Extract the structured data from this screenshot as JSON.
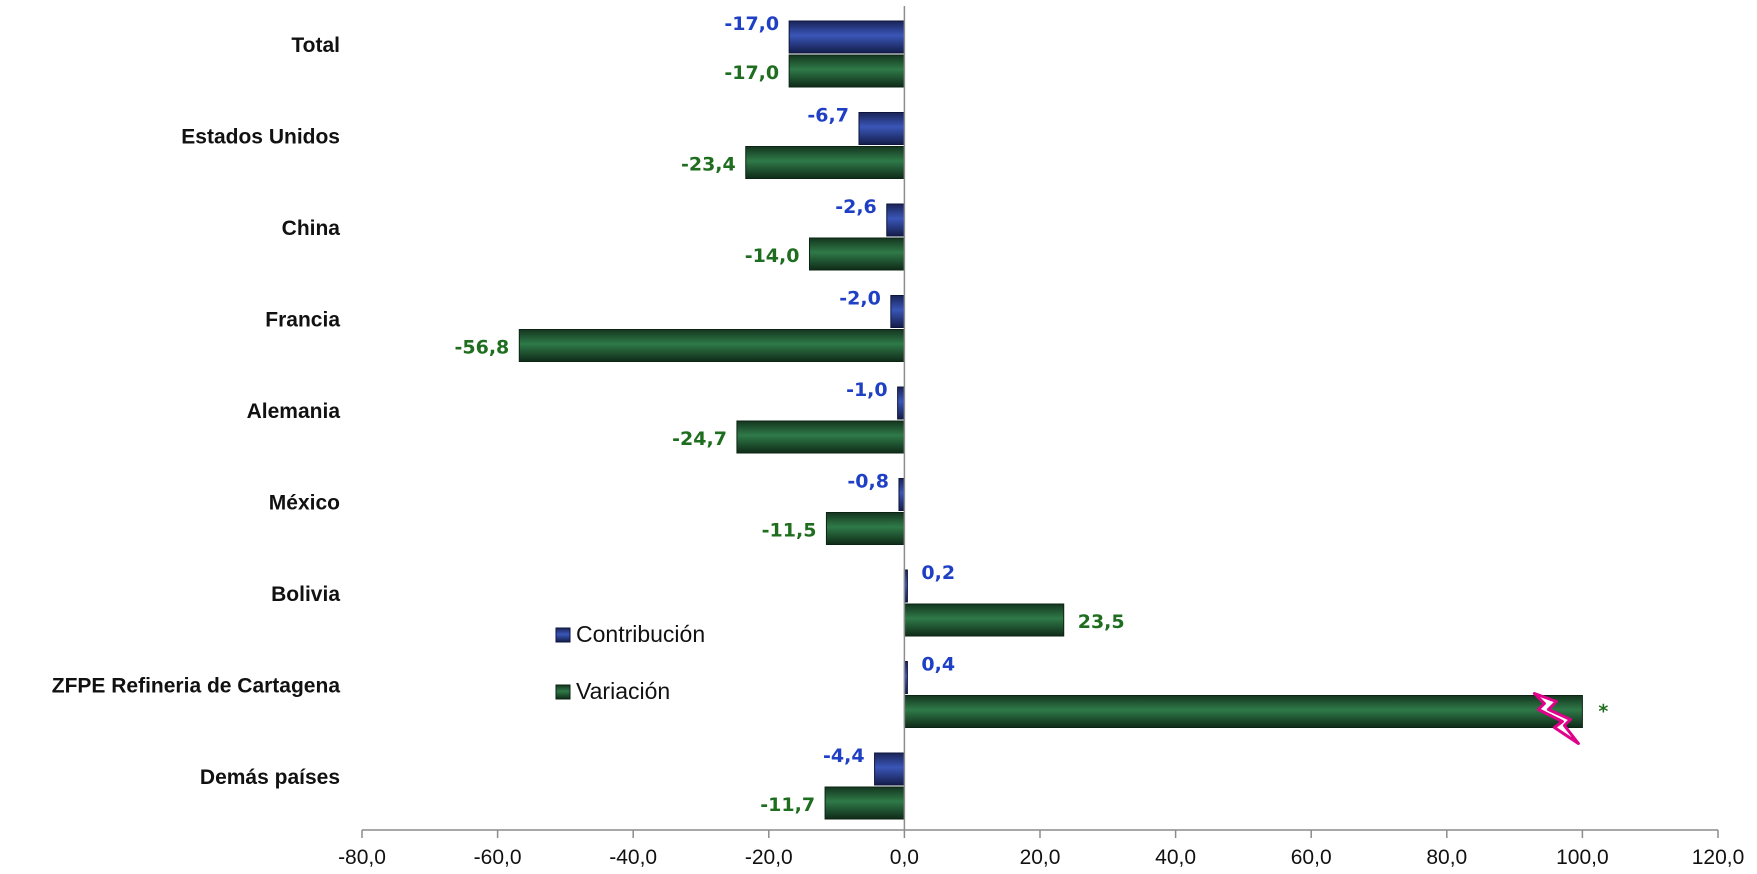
{
  "chart_data": {
    "type": "bar",
    "orientation": "horizontal",
    "categories": [
      "Total",
      "Estados Unidos",
      "China",
      "Francia",
      "Alemania",
      "México",
      "Bolivia",
      "ZFPE Refineria de Cartagena",
      "Demás países"
    ],
    "series": [
      {
        "name": "Contribución",
        "color": "#1f2f7a",
        "label_color": "#1f3fc4",
        "values": [
          -17.0,
          -6.7,
          -2.6,
          -2.0,
          -1.0,
          -0.8,
          0.2,
          0.4,
          -4.4
        ],
        "labels": [
          "-17,0",
          "-6,7",
          "-2,6",
          "-2,0",
          "-1,0",
          "-0,8",
          "0,2",
          "0,4",
          "-4,4"
        ]
      },
      {
        "name": "Variación",
        "color": "#1f5a36",
        "label_color": "#1f6e1f",
        "values": [
          -17.0,
          -23.4,
          -14.0,
          -56.8,
          -24.7,
          -11.5,
          23.5,
          100.0,
          -11.7
        ],
        "labels": [
          "-17,0",
          "-23,4",
          "-14,0",
          "-56,8",
          "-24,7",
          "-11,5",
          "23,5",
          "",
          "-11,7"
        ]
      }
    ],
    "xlim": [
      -80,
      120
    ],
    "x_ticks": [
      -80,
      -60,
      -40,
      -20,
      0,
      20,
      40,
      60,
      80,
      100,
      120
    ],
    "x_tick_labels": [
      "-80,0",
      "-60,0",
      "-40,0",
      "-20,0",
      "0,0",
      "20,0",
      "40,0",
      "60,0",
      "80,0",
      "100,0",
      "120,0"
    ],
    "annotation": {
      "category": "ZFPE Refineria de Cartagena",
      "text": "*",
      "marker": "axis-break",
      "marker_color": "#e0008a"
    },
    "legend": {
      "placement": "center-left",
      "entries": [
        "Contribución",
        "Variación"
      ]
    },
    "grid": false,
    "title": "",
    "xlabel": "",
    "ylabel": ""
  }
}
